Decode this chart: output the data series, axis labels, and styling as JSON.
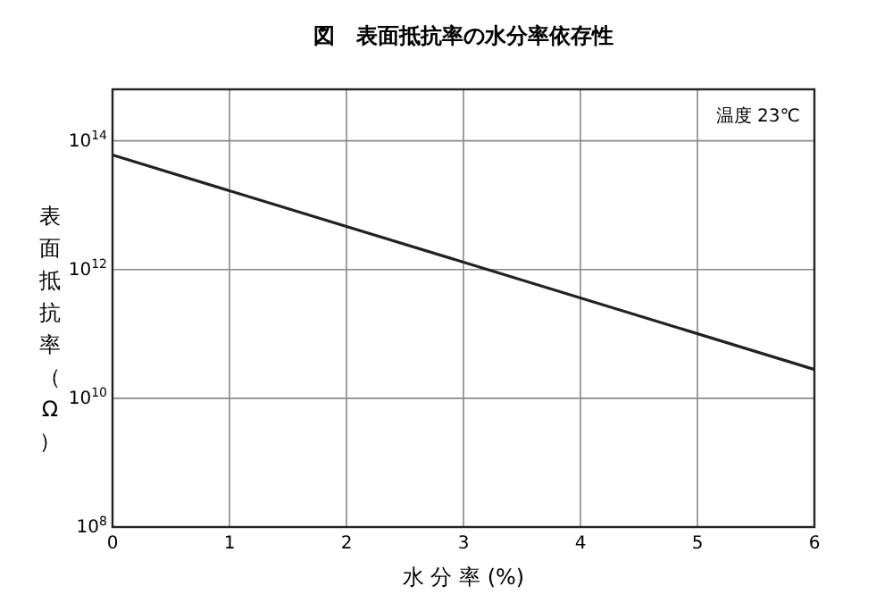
{
  "chart_data": {
    "type": "line",
    "title": "図　表面抵抗率の水分率依存性",
    "xlabel": "水 分 率 (%)",
    "ylabel": "表面抵抗率（Ω）",
    "annotations": [
      "温度 23℃"
    ],
    "x": [
      0,
      3,
      6
    ],
    "series": [
      {
        "color": "#222222",
        "values": [
          60000000000000.0,
          1300000000000.0,
          28000000000.0
        ]
      }
    ],
    "log": "y",
    "xlim": [
      0,
      6
    ],
    "xticks": [
      0,
      1,
      2,
      3,
      4,
      5,
      6
    ],
    "ylim": [
      100000000.0,
      630000000000000.0
    ],
    "yticks": [
      {
        "value": 100000000.0,
        "label": "10$^{8}$"
      },
      {
        "value": 10000000000.0,
        "label": "10$^{10}$"
      },
      {
        "value": 1000000000000.0,
        "label": "10$^{12}$"
      },
      {
        "value": 100000000000000.0,
        "label": "10$^{14}$"
      }
    ],
    "grid": true,
    "marker": "none",
    "line_style": "solid"
  }
}
